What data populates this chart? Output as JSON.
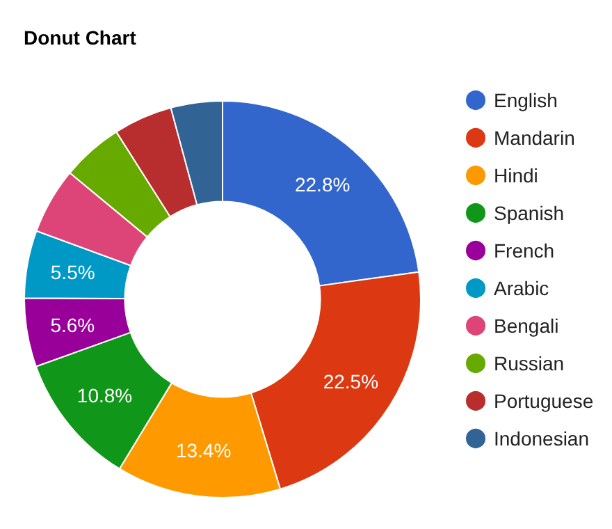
{
  "chart_data": {
    "type": "donut",
    "title": "Donut Chart",
    "categories": [
      "English",
      "Mandarin",
      "Hindi",
      "Spanish",
      "French",
      "Arabic",
      "Bengali",
      "Russian",
      "Portuguese",
      "Indonesian"
    ],
    "values": [
      22.8,
      22.5,
      13.4,
      10.8,
      5.6,
      5.5,
      5.4,
      5.0,
      4.8,
      4.2
    ],
    "value_labels": [
      "22.8%",
      "22.5%",
      "13.4%",
      "10.8%",
      "5.6%",
      "5.5%",
      null,
      null,
      null,
      null
    ],
    "colors": [
      "#3366cc",
      "#dc3912",
      "#ff9900",
      "#109618",
      "#990099",
      "#0099c6",
      "#dd4477",
      "#66aa00",
      "#b82e2e",
      "#316395"
    ],
    "legend": "right"
  }
}
